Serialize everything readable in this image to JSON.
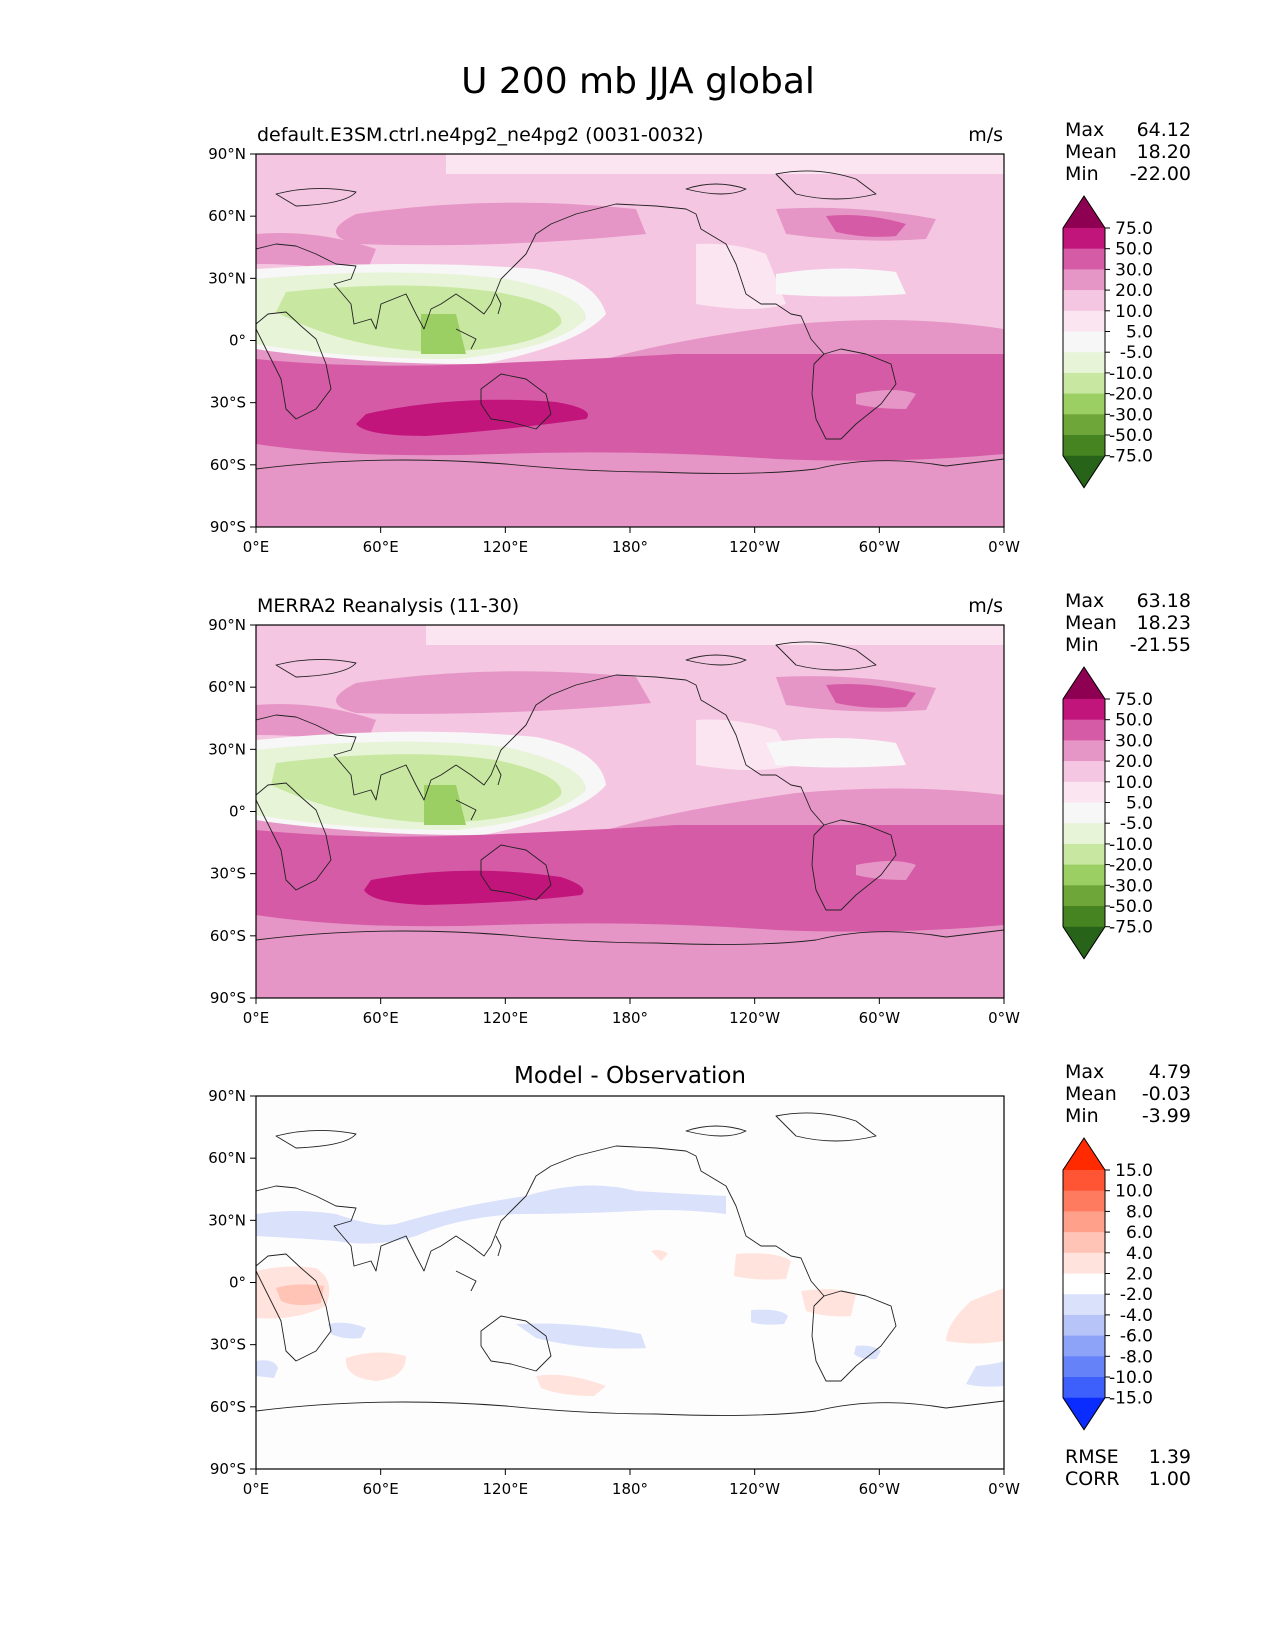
{
  "figure_title": "U 200 mb JJA global",
  "units": "m/s",
  "x_ticks": [
    "0°E",
    "60°E",
    "120°E",
    "180°",
    "120°W",
    "60°W",
    "0°W"
  ],
  "y_ticks": [
    "90°N",
    "60°N",
    "30°N",
    "0°",
    "30°S",
    "60°S",
    "90°S"
  ],
  "panels": [
    {
      "title": "default.E3SM.ctrl.ne4pg2_ne4pg2 (0031-0032)",
      "units": "m/s",
      "stats": [
        {
          "label": "Max",
          "value": "64.12"
        },
        {
          "label": "Mean",
          "value": "18.20"
        },
        {
          "label": "Min",
          "value": "-22.00"
        }
      ]
    },
    {
      "title": "MERRA2 Reanalysis (11-30)",
      "units": "m/s",
      "stats": [
        {
          "label": "Max",
          "value": "63.18"
        },
        {
          "label": "Mean",
          "value": "18.23"
        },
        {
          "label": "Min",
          "value": "-21.55"
        }
      ]
    },
    {
      "title": "Model - Observation",
      "units": "",
      "stats": [
        {
          "label": "Max",
          "value": "4.79"
        },
        {
          "label": "Mean",
          "value": "-0.03"
        },
        {
          "label": "Min",
          "value": "-3.99"
        }
      ],
      "extra_stats": [
        {
          "label": "RMSE",
          "value": "1.39"
        },
        {
          "label": "CORR",
          "value": "1.00"
        }
      ]
    }
  ],
  "colorbars": {
    "field": {
      "labels": [
        "75.0",
        "50.0",
        "30.0",
        "20.0",
        "10.0",
        "5.0",
        "-5.0",
        "-10.0",
        "-20.0",
        "-30.0",
        "-50.0",
        "-75.0"
      ],
      "colors": [
        "#8e0152",
        "#c2157c",
        "#d65ba7",
        "#e696c6",
        "#f5c6e2",
        "#fbe5f1",
        "#f7f7f7",
        "#e7f4d7",
        "#c8e8a2",
        "#9ccf63",
        "#6ea63a",
        "#458421",
        "#276419"
      ]
    },
    "diff": {
      "labels": [
        "15.0",
        "10.0",
        "8.0",
        "6.0",
        "4.0",
        "2.0",
        "-2.0",
        "-4.0",
        "-6.0",
        "-8.0",
        "-10.0",
        "-15.0"
      ],
      "colors": [
        "#ff2a00",
        "#ff5535",
        "#ff7b60",
        "#ffa08a",
        "#ffc4b6",
        "#ffe3dc",
        "#ffffff",
        "#dae1fb",
        "#b7c4f8",
        "#8da3f7",
        "#6582f8",
        "#3d5ffb",
        "#0a2cff"
      ]
    }
  },
  "chart_data": [
    {
      "type": "heatmap",
      "title": "default.E3SM.ctrl.ne4pg2_ne4pg2 (0031-0032)",
      "variable": "U 200 mb JJA global",
      "units": "m/s",
      "x": "longitude",
      "xlim": [
        0,
        360
      ],
      "y": "latitude",
      "ylim": [
        -90,
        90
      ],
      "levels": [
        -75,
        -50,
        -30,
        -20,
        -10,
        -5,
        5,
        10,
        20,
        30,
        50,
        75
      ],
      "max": 64.12,
      "mean": 18.2,
      "min": -22.0,
      "features": [
        {
          "desc": "Southern Hemisphere jet core",
          "lat": -35,
          "lon_range": [
            50,
            160
          ],
          "value": 55
        },
        {
          "desc": "Southern mid-latitude westerlies",
          "lat_range": [
            -55,
            -10
          ],
          "value": 35
        },
        {
          "desc": "Tropical easterlies over Indian Ocean / maritime continent",
          "lat_range": [
            -5,
            15
          ],
          "lon_range": [
            10,
            150
          ],
          "value": -15
        },
        {
          "desc": "Northern mid-latitude jet",
          "lat_range": [
            35,
            55
          ],
          "value": 25
        }
      ]
    },
    {
      "type": "heatmap",
      "title": "MERRA2 Reanalysis (11-30)",
      "variable": "U 200 mb JJA global",
      "units": "m/s",
      "x": "longitude",
      "xlim": [
        0,
        360
      ],
      "y": "latitude",
      "ylim": [
        -90,
        90
      ],
      "levels": [
        -75,
        -50,
        -30,
        -20,
        -10,
        -5,
        5,
        10,
        20,
        30,
        50,
        75
      ],
      "max": 63.18,
      "mean": 18.23,
      "min": -21.55,
      "features": [
        {
          "desc": "Southern Hemisphere jet core",
          "lat": -35,
          "lon_range": [
            55,
            165
          ],
          "value": 55
        },
        {
          "desc": "Southern mid-latitude westerlies",
          "lat_range": [
            -55,
            -10
          ],
          "value": 35
        },
        {
          "desc": "Tropical easterlies over Indian Ocean / maritime continent",
          "lat_range": [
            -5,
            15
          ],
          "lon_range": [
            10,
            150
          ],
          "value": -15
        },
        {
          "desc": "Northern mid-latitude jet",
          "lat_range": [
            35,
            55
          ],
          "value": 25
        }
      ]
    },
    {
      "type": "heatmap",
      "title": "Model - Observation",
      "units": "m/s",
      "x": "longitude",
      "xlim": [
        0,
        360
      ],
      "y": "latitude",
      "ylim": [
        -90,
        90
      ],
      "levels": [
        -15,
        -10,
        -8,
        -6,
        -4,
        -2,
        2,
        4,
        6,
        8,
        10,
        15
      ],
      "max": 4.79,
      "mean": -0.03,
      "min": -3.99,
      "rmse": 1.39,
      "corr": 1.0,
      "features": [
        {
          "desc": "negative band across Asia / North Pacific",
          "lat": 25,
          "lon_range": [
            0,
            150
          ],
          "value": -3
        },
        {
          "desc": "positive patch over equatorial Africa",
          "lat": -5,
          "lon_range": [
            0,
            40
          ],
          "value": 4
        },
        {
          "desc": "positive patch south of Africa",
          "lat": -45,
          "lon_range": [
            55,
            85
          ],
          "value": 3
        },
        {
          "desc": "negative patch off eastern Australia",
          "lat": -30,
          "lon_range": [
            135,
            170
          ],
          "value": -3
        }
      ]
    }
  ]
}
